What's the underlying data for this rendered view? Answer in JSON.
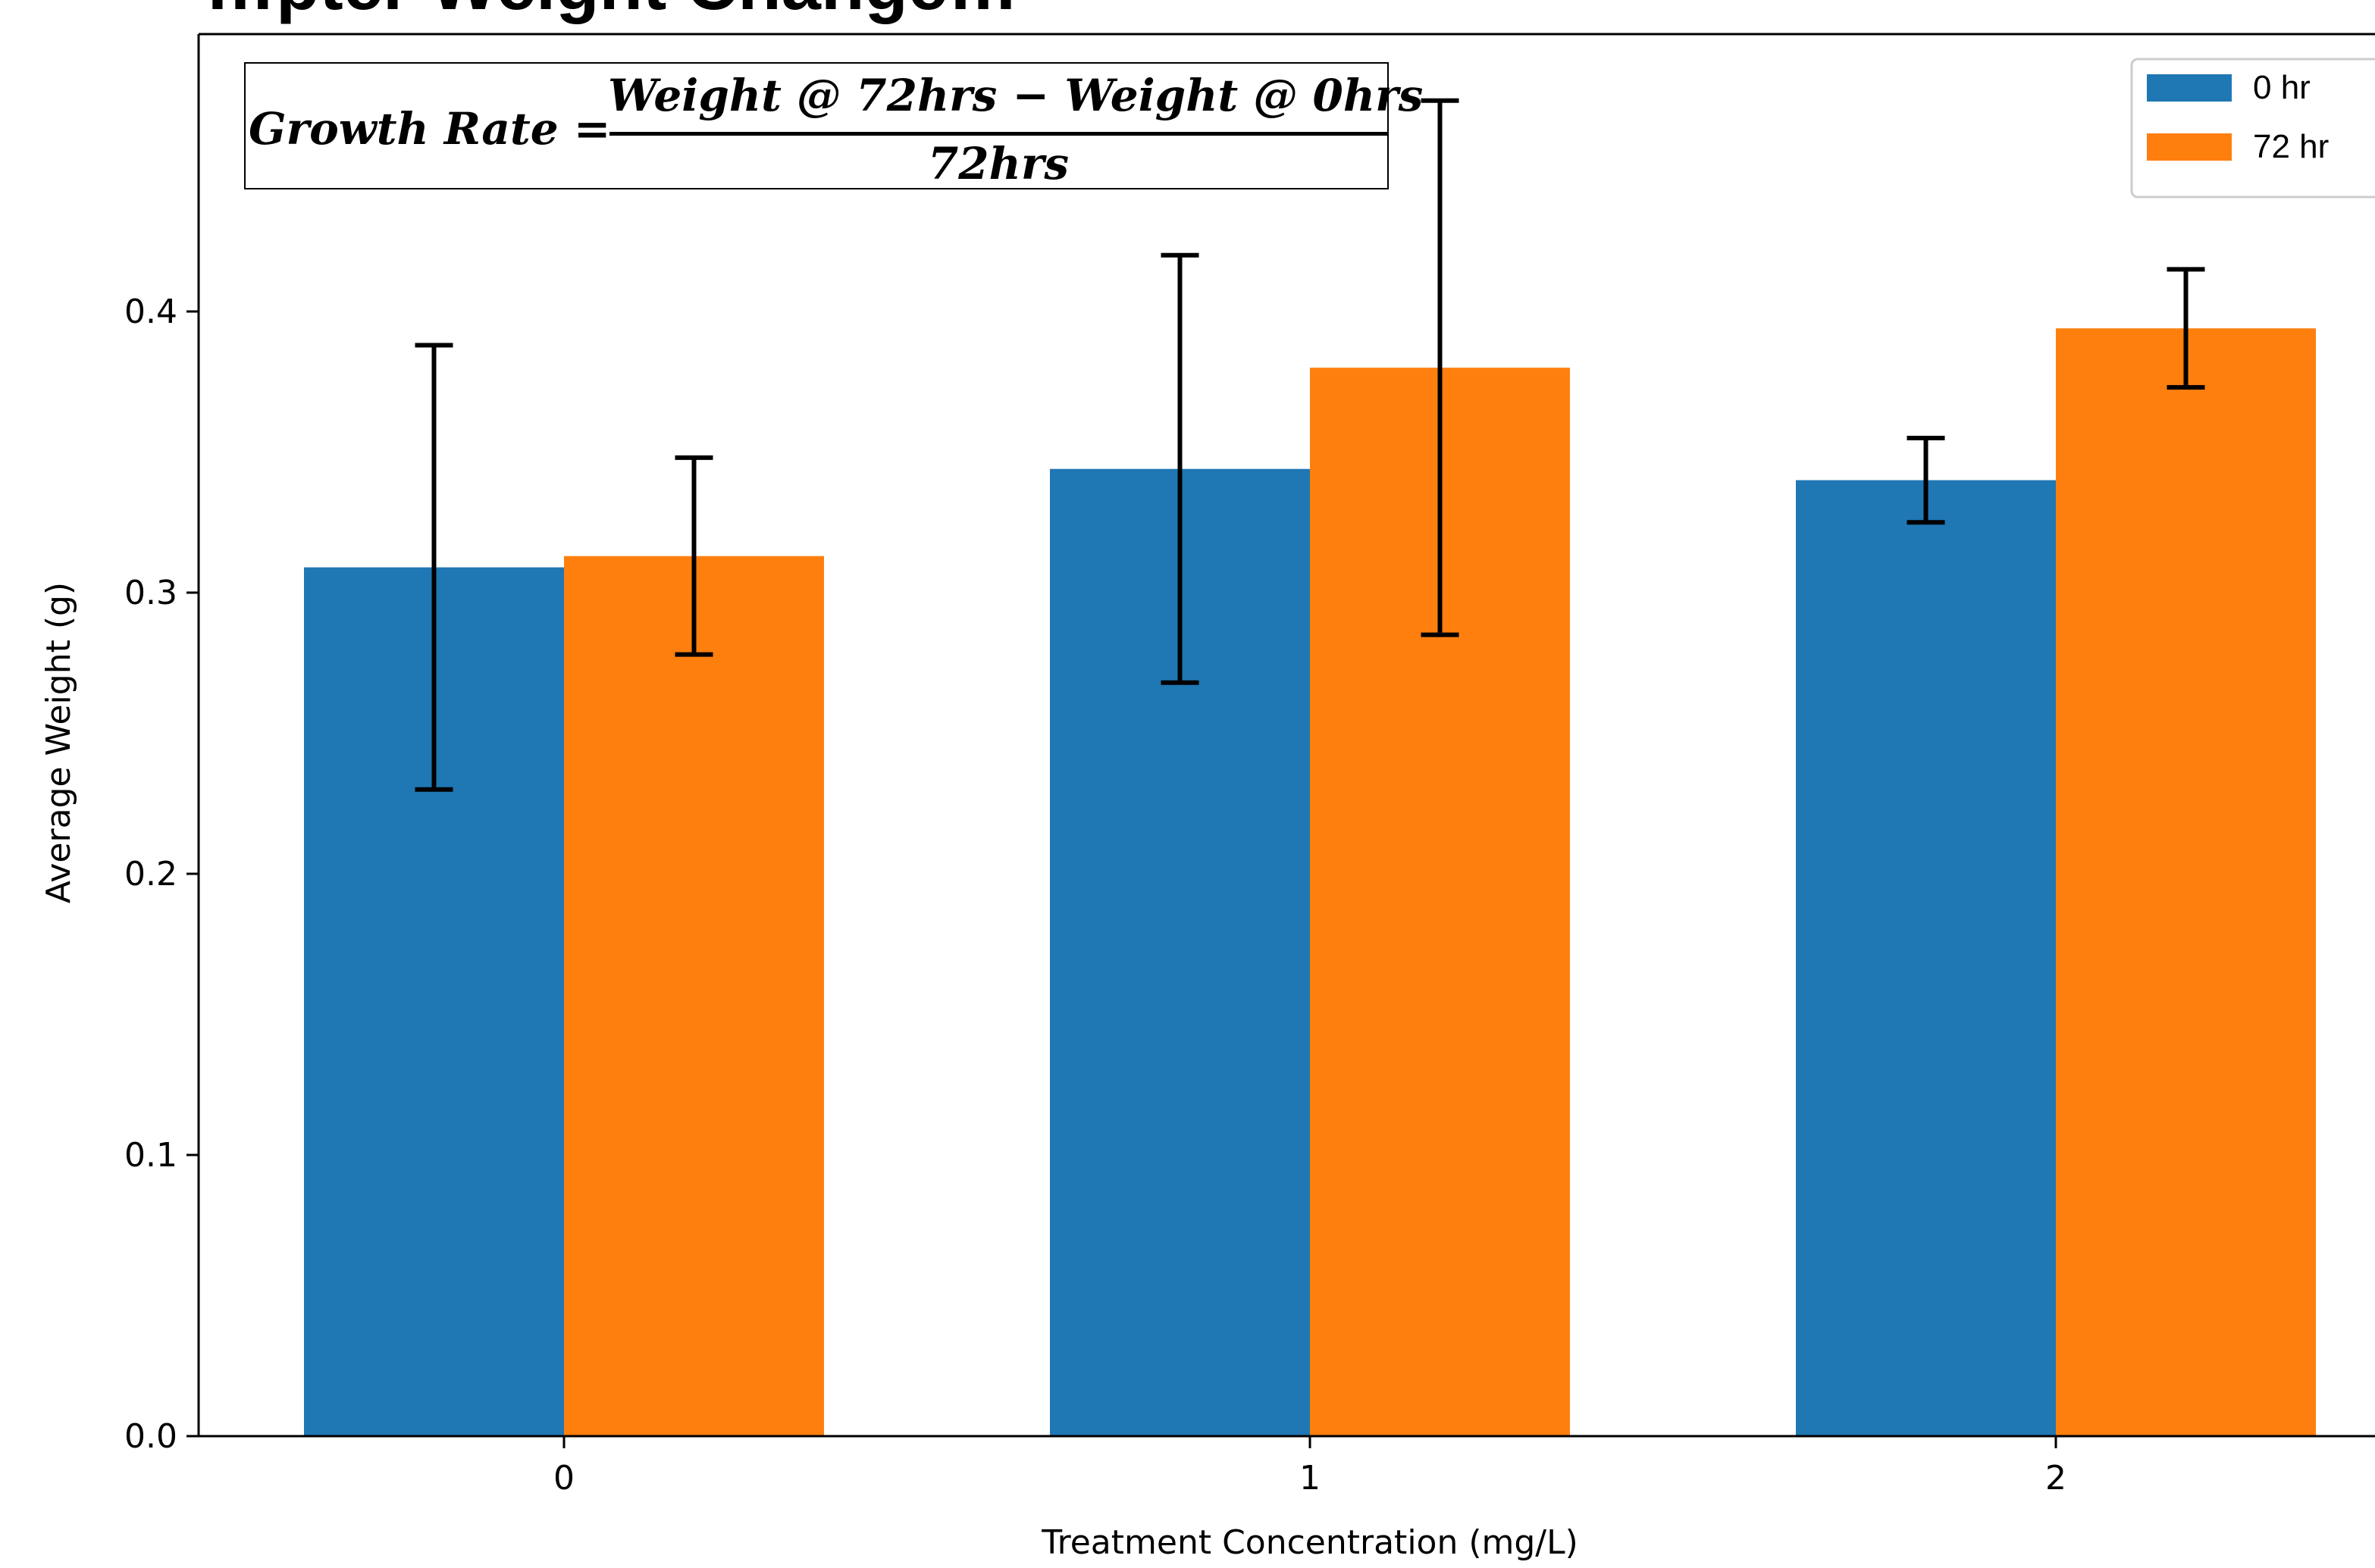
{
  "chart_data": {
    "type": "bar",
    "title": "…pter Weight Change…",
    "annotation": {
      "lhs": "Growth Rate =",
      "numerator": "Weight @ 72hrs − Weight @ 0hrs",
      "denominator": "72hrs"
    },
    "categories": [
      "0",
      "1",
      "2"
    ],
    "series": [
      {
        "name": "0 hr",
        "color": "#1f77b4",
        "values": [
          0.309,
          0.344,
          0.34
        ],
        "errors": [
          0.079,
          0.076,
          0.015
        ]
      },
      {
        "name": "72 hr",
        "color": "#ff7f0e",
        "values": [
          0.313,
          0.38,
          0.394
        ],
        "errors": [
          0.035,
          0.095,
          0.021
        ]
      }
    ],
    "xlabel": "Treatment Concentration (mg/L)",
    "ylabel": "Average Weight (g)",
    "ylim": [
      0,
      0.5
    ],
    "yticks": [
      "0.0",
      "0.1",
      "0.2",
      "0.3",
      "0.4"
    ],
    "grid": false,
    "legend_position": "top-right"
  }
}
